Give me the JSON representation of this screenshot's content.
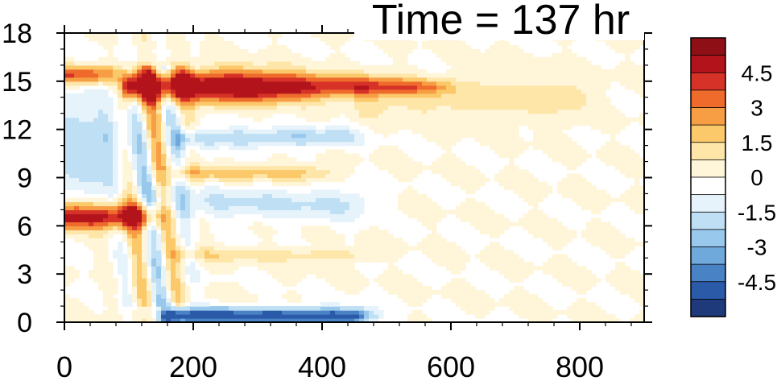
{
  "chart_data": {
    "type": "heatmap",
    "title": "Time = 137 hr",
    "xlabel": "",
    "ylabel": "",
    "xlim": [
      0,
      900
    ],
    "ylim": [
      0,
      18
    ],
    "x_ticks": [
      "0",
      "200",
      "400",
      "600",
      "800"
    ],
    "x_tick_values": [
      0,
      200,
      400,
      600,
      800
    ],
    "y_ticks": [
      "0",
      "3",
      "6",
      "9",
      "12",
      "15",
      "18"
    ],
    "y_tick_values": [
      0,
      3,
      6,
      9,
      12,
      15,
      18
    ],
    "colorbar": {
      "orientation": "vertical",
      "placement": "right",
      "range": [
        -5.25,
        5.25
      ],
      "levels": [
        -4.5,
        -3.75,
        -3,
        -2.25,
        -1.5,
        -0.75,
        0,
        0.75,
        1.5,
        2.25,
        3,
        3.75,
        4.5
      ],
      "labels": [
        "4.5",
        "3",
        "1.5",
        "0",
        "-1.5",
        "-3",
        "-4.5"
      ],
      "label_values": [
        4.5,
        3,
        1.5,
        0,
        -1.5,
        -3,
        -4.5
      ],
      "colors": [
        "#1f3a7a",
        "#2b5aa8",
        "#4a82c6",
        "#6fa8db",
        "#98c8ec",
        "#bfdff5",
        "#e6f3fb",
        "#ffffff",
        "#fff5d9",
        "#fde6a8",
        "#fbc86a",
        "#f79e45",
        "#ee6b2c",
        "#d73227",
        "#b3141c",
        "#8e0f16"
      ]
    },
    "features": [
      {
        "name": "upper positive band",
        "x": [
          100,
          560
        ],
        "y_center": 14.7,
        "half_height": 1.0,
        "peak": 6.0,
        "taper_from": 300
      },
      {
        "name": "weak positive plume",
        "x": [
          460,
          780
        ],
        "y_center": 14.0,
        "half_height": 1.2,
        "peak": 1.2
      },
      {
        "name": "mid negative band",
        "x": [
          180,
          420
        ],
        "y_center": 11.5,
        "half_height": 0.6,
        "peak": -2.2
      },
      {
        "name": "positive band 9km",
        "x": [
          180,
          380
        ],
        "y_center": 9.3,
        "half_height": 0.5,
        "peak": 1.8
      },
      {
        "name": "negative band 7km",
        "x": [
          140,
          440
        ],
        "y_center": 7.4,
        "half_height": 1.0,
        "peak": -1.6
      },
      {
        "name": "left positive blob",
        "x": [
          0,
          110
        ],
        "y_center": 6.6,
        "half_height": 0.8,
        "peak": 5.5
      },
      {
        "name": "upper left positive",
        "x": [
          0,
          40
        ],
        "y_center": 15.4,
        "half_height": 0.6,
        "peak": 4.0
      },
      {
        "name": "bottom negative band",
        "x": [
          160,
          440
        ],
        "y_center": 0.4,
        "half_height": 0.5,
        "peak": -5.5
      },
      {
        "name": "left column negative",
        "x": [
          0,
          60
        ],
        "y_center": 11.0,
        "half_height": 3.5,
        "peak": -2.0
      },
      {
        "name": "lower positive streak",
        "x": [
          180,
          440
        ],
        "y_center": 4.2,
        "half_height": 0.4,
        "peak": 1.2
      }
    ]
  }
}
